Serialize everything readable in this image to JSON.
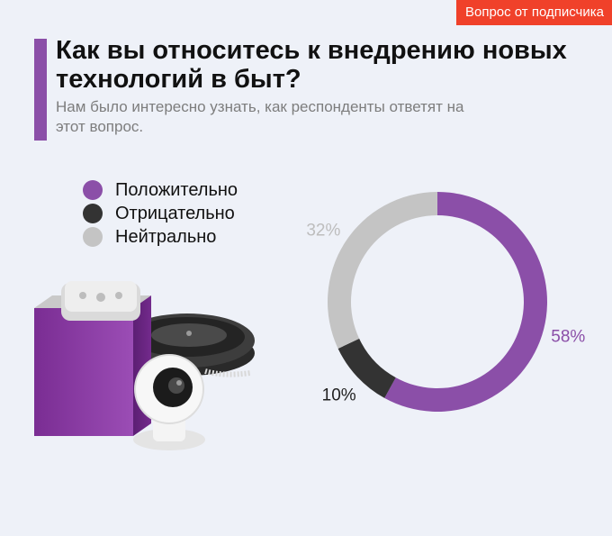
{
  "badge": {
    "label": "Вопрос от подписчика"
  },
  "header": {
    "title": "Как вы относитесь к внедрению новых технологий в быт?",
    "subtitle": "Нам было интересно узнать, как респонденты ответят на этот вопрос."
  },
  "colors": {
    "accent": "#8b4fa8",
    "badge": "#f0412a",
    "positive": "#8b4fa8",
    "negative": "#333333",
    "neutral": "#c4c4c4"
  },
  "illustration": {
    "icons": [
      "smart-speaker-icon",
      "robot-vacuum-icon",
      "security-camera-icon"
    ]
  },
  "chart_data": {
    "type": "pie",
    "donut": true,
    "title": "",
    "categories": [
      "Положительно",
      "Отрицательно",
      "Нейтрально"
    ],
    "values": [
      58,
      10,
      32
    ],
    "data_labels": [
      "58%",
      "10%",
      "32%"
    ],
    "colors": [
      "#8b4fa8",
      "#333333",
      "#c4c4c4"
    ],
    "legend_position": "top-left"
  }
}
